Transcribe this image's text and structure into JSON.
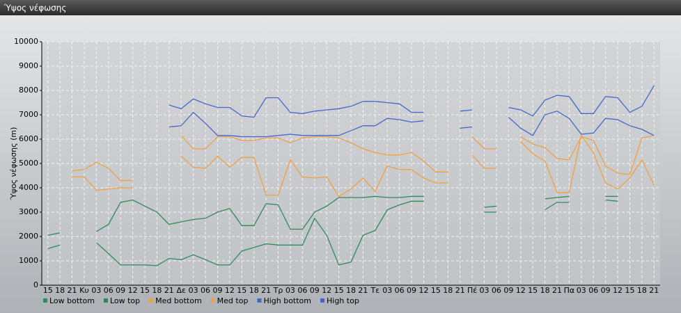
{
  "chart_data": {
    "type": "line",
    "title": "Ύψος νέφωσης",
    "ylabel": "Ύψος νέφωσης (m)",
    "categories": [
      "15",
      "18",
      "21",
      "Κυ",
      "03",
      "06",
      "09",
      "12",
      "15",
      "18",
      "21",
      "Δε",
      "03",
      "06",
      "09",
      "12",
      "15",
      "18",
      "21",
      "Τρ",
      "03",
      "06",
      "09",
      "12",
      "15",
      "18",
      "21",
      "Τε",
      "03",
      "06",
      "09",
      "12",
      "15",
      "18",
      "21",
      "Πέ",
      "03",
      "06",
      "09",
      "12",
      "15",
      "18",
      "21",
      "Πα",
      "03",
      "06",
      "09",
      "12",
      "15",
      "18",
      "21"
    ],
    "ylim": [
      0,
      10000
    ],
    "yticks": [
      0,
      1000,
      2000,
      3000,
      4000,
      5000,
      6000,
      7000,
      8000,
      9000,
      10000
    ],
    "grid": true,
    "series": [
      {
        "name": "Low bottom",
        "color": "#2e8b57",
        "values": [
          1500,
          1650,
          null,
          null,
          1750,
          1300,
          830,
          830,
          830,
          800,
          1100,
          1050,
          1250,
          1050,
          830,
          830,
          1400,
          1550,
          1700,
          1650,
          1650,
          1650,
          2750,
          2050,
          830,
          950,
          2050,
          2250,
          3100,
          3300,
          3450,
          3450,
          null,
          null,
          null,
          null,
          3000,
          3000,
          null,
          null,
          null,
          3100,
          3400,
          3400,
          null,
          null,
          3500,
          3450,
          null,
          null,
          null
        ]
      },
      {
        "name": "Low top",
        "color": "#2e8b57",
        "values": [
          2050,
          2150,
          null,
          null,
          2200,
          2500,
          3400,
          3500,
          3250,
          3000,
          2500,
          2600,
          2700,
          2750,
          3000,
          3150,
          2450,
          2450,
          3350,
          3300,
          2300,
          2300,
          3000,
          3250,
          3600,
          3600,
          3600,
          3650,
          3600,
          3600,
          3650,
          3650,
          null,
          null,
          null,
          null,
          3200,
          3250,
          null,
          null,
          null,
          3550,
          3600,
          3650,
          null,
          null,
          3650,
          3650,
          null,
          null,
          null
        ]
      },
      {
        "name": "Med bottom",
        "color": "#f0a040",
        "values": [
          null,
          null,
          4450,
          4450,
          3900,
          3950,
          4000,
          4000,
          null,
          null,
          null,
          5300,
          4850,
          4800,
          5300,
          4850,
          5250,
          5250,
          3700,
          3700,
          5150,
          4450,
          4400,
          4450,
          3650,
          3950,
          4400,
          3850,
          4900,
          4750,
          4750,
          4400,
          4200,
          4200,
          null,
          5350,
          4800,
          4800,
          null,
          5900,
          5400,
          5100,
          3800,
          3800,
          6150,
          5450,
          4200,
          3950,
          4400,
          5150,
          4100
        ]
      },
      {
        "name": "Med top",
        "color": "#f0a040",
        "values": [
          null,
          null,
          4700,
          4750,
          5050,
          4800,
          4300,
          4300,
          null,
          null,
          null,
          6150,
          5600,
          5600,
          6100,
          6100,
          5950,
          5950,
          6050,
          6050,
          5850,
          6050,
          6100,
          6100,
          6050,
          5850,
          5600,
          5450,
          5350,
          5350,
          5450,
          5100,
          4650,
          4650,
          null,
          6100,
          5600,
          5600,
          null,
          6100,
          5800,
          5650,
          5200,
          5150,
          6100,
          5950,
          4900,
          4600,
          4550,
          6050,
          6150
        ]
      },
      {
        "name": "High bottom",
        "color": "#4466cc",
        "values": [
          null,
          null,
          null,
          null,
          null,
          null,
          null,
          null,
          null,
          null,
          6500,
          6550,
          7100,
          6650,
          6150,
          6150,
          6100,
          6100,
          6100,
          6150,
          6200,
          6150,
          6150,
          6150,
          6150,
          6350,
          6550,
          6550,
          6850,
          6800,
          6700,
          6750,
          null,
          null,
          6450,
          6500,
          null,
          null,
          6900,
          6450,
          6150,
          7000,
          7150,
          6850,
          6200,
          6250,
          6850,
          6800,
          6550,
          6400,
          6150
        ]
      },
      {
        "name": "High top",
        "color": "#4466cc",
        "values": [
          null,
          null,
          null,
          null,
          null,
          null,
          null,
          null,
          null,
          null,
          7400,
          7250,
          7650,
          7450,
          7300,
          7300,
          6950,
          6900,
          7700,
          7700,
          7100,
          7050,
          7150,
          7200,
          7250,
          7350,
          7550,
          7550,
          7500,
          7450,
          7100,
          7100,
          null,
          null,
          7150,
          7200,
          null,
          null,
          7300,
          7200,
          6950,
          7600,
          7800,
          7750,
          7050,
          7050,
          7750,
          7700,
          7100,
          7350,
          8200
        ]
      }
    ]
  }
}
